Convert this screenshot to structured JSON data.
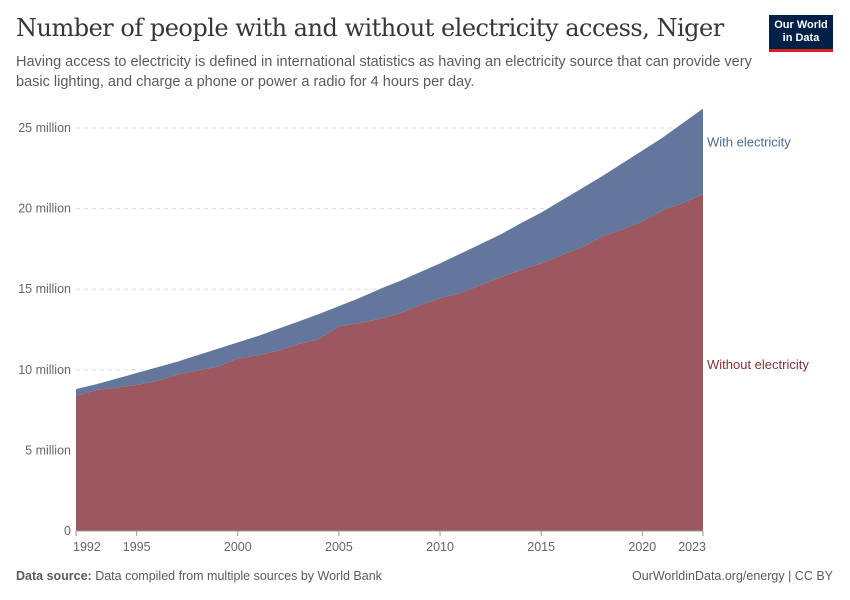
{
  "header": {
    "title": "Number of people with and without electricity access, Niger",
    "subtitle": "Having access to electricity is defined in international statistics as having an electricity source that can provide very basic lighting, and charge a phone or power a radio for 4 hours per day.",
    "logo_text": "Our World in Data"
  },
  "footer": {
    "source_label": "Data source:",
    "source_text": " Data compiled from multiple sources by World Bank",
    "right_text": "OurWorldinData.org/energy | CC BY"
  },
  "chart_data": {
    "type": "area",
    "stacked": true,
    "x": [
      1992,
      1993,
      1994,
      1995,
      1996,
      1997,
      1998,
      1999,
      2000,
      2001,
      2002,
      2003,
      2004,
      2005,
      2006,
      2007,
      2008,
      2009,
      2010,
      2011,
      2012,
      2013,
      2014,
      2015,
      2016,
      2017,
      2018,
      2019,
      2020,
      2021,
      2022,
      2023
    ],
    "series": [
      {
        "name": "Without electricity",
        "color": "#9c575f",
        "label_color": "#883039",
        "values": [
          8370000,
          8750000,
          8900000,
          9060000,
          9300000,
          9700000,
          9950000,
          10200000,
          10700000,
          10900000,
          11200000,
          11600000,
          11900000,
          12700000,
          12900000,
          13150000,
          13500000,
          14000000,
          14450000,
          14750000,
          15250000,
          15750000,
          16200000,
          16600000,
          17100000,
          17600000,
          18250000,
          18700000,
          19200000,
          19900000,
          20350000,
          20900000
        ]
      },
      {
        "name": "With electricity",
        "color": "#62779b",
        "label_color": "#4c6a9c",
        "values": [
          430000,
          350000,
          550000,
          740000,
          850000,
          800000,
          950000,
          1100000,
          1000000,
          1200000,
          1350000,
          1400000,
          1550000,
          1250000,
          1550000,
          1850000,
          2000000,
          2050000,
          2150000,
          2450000,
          2550000,
          2650000,
          2900000,
          3150000,
          3400000,
          3650000,
          3750000,
          4100000,
          4400000,
          4500000,
          4950000,
          5300000
        ]
      }
    ],
    "ylim": [
      0,
      25000000
    ],
    "yticks": [
      {
        "v": 0,
        "label": "0"
      },
      {
        "v": 5000000,
        "label": "5 million"
      },
      {
        "v": 10000000,
        "label": "10 million"
      },
      {
        "v": 15000000,
        "label": "15 million"
      },
      {
        "v": 20000000,
        "label": "20 million"
      },
      {
        "v": 25000000,
        "label": "25 million"
      }
    ],
    "xticks": [
      {
        "v": 1992,
        "label": "1992"
      },
      {
        "v": 1995,
        "label": "1995"
      },
      {
        "v": 2000,
        "label": "2000"
      },
      {
        "v": 2005,
        "label": "2005"
      },
      {
        "v": 2010,
        "label": "2010"
      },
      {
        "v": 2015,
        "label": "2015"
      },
      {
        "v": 2020,
        "label": "2020"
      },
      {
        "v": 2023,
        "label": "2023"
      }
    ],
    "grid": "horizontal dashed",
    "legend": "inline-right"
  }
}
